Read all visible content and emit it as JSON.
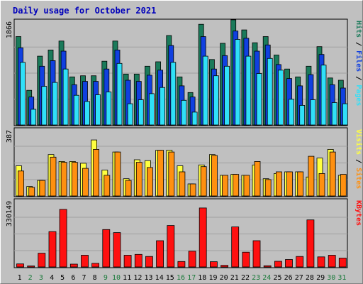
{
  "chart_data": {
    "type": "bar",
    "title": "Daily usage for October 2021",
    "categories": [
      "1",
      "2",
      "3",
      "4",
      "5",
      "6",
      "7",
      "8",
      "9",
      "10",
      "11",
      "12",
      "13",
      "14",
      "15",
      "16",
      "17",
      "18",
      "19",
      "20",
      "21",
      "22",
      "23",
      "24",
      "25",
      "26",
      "27",
      "28",
      "29",
      "30",
      "31"
    ],
    "weekend_days": [
      "2",
      "3",
      "9",
      "10",
      "16",
      "17",
      "23",
      "24",
      "30",
      "31"
    ],
    "colors": {
      "hits": "#1a7a5a",
      "files": "#1040e0",
      "pages": "#30e0f8",
      "visits": "#ffff40",
      "sites": "#ff9010",
      "kbytes": "#ff1010",
      "weekday_label": "#000000",
      "weekend_label": "#1a7a3a"
    },
    "panels": [
      {
        "name": "requests",
        "axis_max_label": "1866",
        "ylim": [
          0,
          1866
        ],
        "legend": [
          {
            "label": "Pages",
            "color": "#30e0f8"
          },
          {
            "label": "/",
            "color": "#000000"
          },
          {
            "label": "Files",
            "color": "#1040e0"
          },
          {
            "label": "/",
            "color": "#000000"
          },
          {
            "label": "Hits",
            "color": "#1a7a5a"
          }
        ],
        "series": [
          {
            "name": "Hits",
            "values": [
              1580,
              620,
              1230,
              1340,
              1500,
              860,
              880,
              880,
              1140,
              1500,
              910,
              910,
              1050,
              1130,
              1600,
              860,
              580,
              1800,
              1170,
              1460,
              1880,
              1700,
              1470,
              1580,
              1250,
              1000,
              860,
              1050,
              1400,
              840,
              800
            ]
          },
          {
            "name": "Files",
            "values": [
              1380,
              500,
              1050,
              1150,
              1320,
              720,
              780,
              780,
              1000,
              1340,
              800,
              780,
              890,
              980,
              1420,
              700,
              500,
              1580,
              1000,
              1240,
              1680,
              1550,
              1320,
              1430,
              1080,
              830,
              700,
              900,
              1260,
              720,
              660
            ]
          },
          {
            "name": "Pages",
            "values": [
              1120,
              280,
              690,
              760,
              1000,
              530,
              420,
              540,
              590,
              1100,
              380,
              450,
              560,
              670,
              1120,
              440,
              230,
              1230,
              880,
              1050,
              1530,
              1230,
              920,
              1190,
              980,
              460,
              350,
              450,
              1070,
              400,
              380
            ]
          }
        ]
      },
      {
        "name": "visitors",
        "axis_max_label": "387",
        "ylim": [
          0,
          387
        ],
        "legend": [
          {
            "label": "Sites",
            "color": "#ff9010"
          },
          {
            "label": "/",
            "color": "#000000"
          },
          {
            "label": "Visits",
            "color": "#ffff40"
          }
        ],
        "series": [
          {
            "name": "Visits",
            "values": [
              175,
              55,
              90,
              240,
              200,
              200,
              190,
              325,
              150,
              255,
              100,
              210,
              205,
              265,
              265,
              175,
              70,
              180,
              240,
              120,
              125,
              120,
              180,
              100,
              130,
              140,
              140,
              110,
              220,
              270,
              120
            ]
          },
          {
            "name": "Sites",
            "values": [
              145,
              50,
              90,
              225,
              195,
              195,
              160,
              270,
              120,
              255,
              90,
              195,
              165,
              265,
              255,
              140,
              70,
              170,
              235,
              120,
              125,
              120,
              200,
              95,
              140,
              140,
              140,
              230,
              130,
              255,
              125
            ]
          }
        ]
      },
      {
        "name": "kbytes",
        "axis_max_label": "330149",
        "ylim": [
          0,
          330149
        ],
        "legend": [
          {
            "label": "KBytes",
            "color": "#ff1010"
          }
        ],
        "series": [
          {
            "name": "KBytes",
            "values": [
              15000,
              5000,
              68000,
              175000,
              285000,
              14000,
              58000,
              18000,
              185000,
              170000,
              58000,
              62000,
              52000,
              130000,
              205000,
              27000,
              78000,
              292000,
              26000,
              8000,
              198000,
              73000,
              130000,
              6000,
              28000,
              37000,
              52000,
              233000,
              50000,
              58000,
              44000
            ]
          }
        ]
      }
    ]
  }
}
